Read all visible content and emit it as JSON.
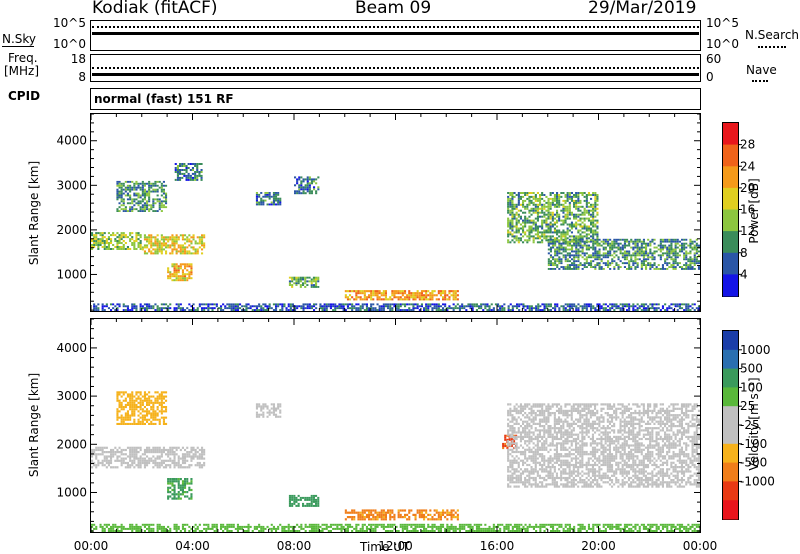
{
  "header": {
    "radar": "Kodiak (fitACF)",
    "beam": "Beam 09",
    "date": "29/Mar/2019"
  },
  "noise_panel": {
    "left_label": "N.Sky",
    "right_label": "N.Search",
    "left_ticks": [
      "10^5",
      "10^0"
    ],
    "right_ticks": [
      "10^5",
      "10^0"
    ]
  },
  "freq_panel": {
    "left_label_1": "Freq.",
    "left_label_2": "[MHz]",
    "right_label": "Nave",
    "left_ticks": [
      "18",
      "8"
    ],
    "right_ticks": [
      "60",
      "0"
    ]
  },
  "cpid": {
    "label": "CPID",
    "text": "normal (fast) 151 RF"
  },
  "chart_data": [
    {
      "type": "heatmap",
      "title": "",
      "xlabel": "Time UT",
      "ylabel": "Slant Range [km]",
      "x_ticks": [
        "00:00",
        "04:00",
        "08:00",
        "12:00",
        "16:00",
        "20:00",
        "00:00"
      ],
      "xlim_hours": [
        0,
        24
      ],
      "y_ticks": [
        1000,
        2000,
        3000,
        4000
      ],
      "ylim": [
        180,
        4600
      ],
      "colorbar": {
        "label": "Power [dB]",
        "ticks": [
          "28",
          "24",
          "20",
          "16",
          "12",
          "8",
          "4"
        ],
        "colors": [
          "#e8171c",
          "#f0631a",
          "#f59a1a",
          "#e0cf20",
          "#8cc63f",
          "#3a8c5a",
          "#2a56a6",
          "#1414e6"
        ]
      },
      "features": [
        {
          "t": [
            0.0,
            2.0
          ],
          "range_km": [
            1550,
            1950
          ],
          "level": 14
        },
        {
          "t": [
            2.0,
            4.5
          ],
          "range_km": [
            1450,
            1900
          ],
          "level": 18
        },
        {
          "t": [
            3.0,
            4.0
          ],
          "range_km": [
            850,
            1250
          ],
          "level": 20
        },
        {
          "t": [
            1.0,
            3.0
          ],
          "range_km": [
            2400,
            3100
          ],
          "level": 10
        },
        {
          "t": [
            3.3,
            4.4
          ],
          "range_km": [
            3100,
            3500
          ],
          "level": 8
        },
        {
          "t": [
            6.5,
            7.5
          ],
          "range_km": [
            2550,
            2850
          ],
          "level": 8
        },
        {
          "t": [
            8.0,
            9.0
          ],
          "range_km": [
            2800,
            3200
          ],
          "level": 8
        },
        {
          "t": [
            7.8,
            9.0
          ],
          "range_km": [
            700,
            950
          ],
          "level": 12
        },
        {
          "t": [
            10.0,
            14.5
          ],
          "range_km": [
            420,
            650
          ],
          "level": 22
        },
        {
          "t": [
            16.4,
            20.0
          ],
          "range_km": [
            1700,
            2850
          ],
          "level": 12
        },
        {
          "t": [
            18.0,
            24.0
          ],
          "range_km": [
            1100,
            1800
          ],
          "level": 10
        },
        {
          "t": [
            0.0,
            24.0
          ],
          "range_km": [
            180,
            350
          ],
          "level": 6
        }
      ]
    },
    {
      "type": "heatmap",
      "title": "",
      "xlabel": "Time UT",
      "ylabel": "Slant Range [km]",
      "x_ticks": [
        "00:00",
        "04:00",
        "08:00",
        "12:00",
        "16:00",
        "20:00",
        "00:00"
      ],
      "xlim_hours": [
        0,
        24
      ],
      "y_ticks": [
        1000,
        2000,
        3000,
        4000
      ],
      "ylim": [
        180,
        4600
      ],
      "colorbar": {
        "label": "Velocity [m s⁻¹]",
        "ticks": [
          "1000",
          "500",
          "100",
          "25",
          "-25",
          "-100",
          "-500",
          "-1000"
        ],
        "colors": [
          "#1a3da8",
          "#2a6fb0",
          "#3a9a5c",
          "#59b83a",
          "#c0c0c0",
          "#c0c0c0",
          "#f6b21c",
          "#f07e1a",
          "#e83a14",
          "#e8141c"
        ]
      },
      "features": [
        {
          "t": [
            0.0,
            4.5
          ],
          "range_km": [
            1500,
            1950
          ],
          "level": 0
        },
        {
          "t": [
            3.0,
            4.0
          ],
          "range_km": [
            850,
            1300
          ],
          "level": 120
        },
        {
          "t": [
            1.0,
            3.0
          ],
          "range_km": [
            2400,
            3100
          ],
          "level": -50
        },
        {
          "t": [
            6.5,
            7.5
          ],
          "range_km": [
            2550,
            2850
          ],
          "level": 0
        },
        {
          "t": [
            7.8,
            9.0
          ],
          "range_km": [
            700,
            950
          ],
          "level": 150
        },
        {
          "t": [
            10.0,
            14.5
          ],
          "range_km": [
            420,
            650
          ],
          "level": -120
        },
        {
          "t": [
            16.2,
            16.8
          ],
          "range_km": [
            1900,
            2200
          ],
          "level": -600
        },
        {
          "t": [
            16.4,
            24.0
          ],
          "range_km": [
            1100,
            2850
          ],
          "level": 0
        },
        {
          "t": [
            0.0,
            24.0
          ],
          "range_km": [
            180,
            350
          ],
          "level": 60
        }
      ]
    }
  ]
}
